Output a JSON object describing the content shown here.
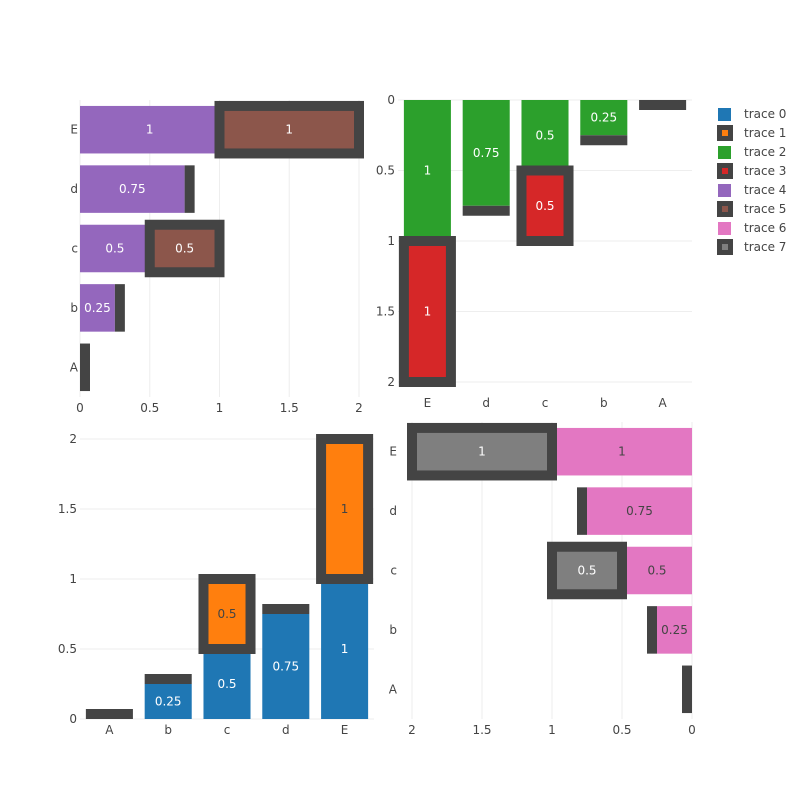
{
  "chart_data": {
    "type": "bar",
    "barmode": "stack",
    "grid": true,
    "legend_placement": "top-right",
    "colors": {
      "trace0": "#1f77b4",
      "trace1": "#ff7f0e",
      "trace2": "#2ca02c",
      "trace3": "#d62728",
      "trace4": "#9467bd",
      "trace5": "#8c564b",
      "trace6": "#e377c2",
      "trace7": "#7f7f7f",
      "outline": "#444444"
    },
    "legend": [
      "trace 0",
      "trace 1",
      "trace 2",
      "trace 3",
      "trace 4",
      "trace 5",
      "trace 6",
      "trace 7"
    ],
    "subplots": [
      {
        "id": "top-left",
        "orientation": "h",
        "categories": [
          "A",
          "b",
          "c",
          "d",
          "E"
        ],
        "value_ticks": [
          "0",
          "0.5",
          "1",
          "1.5",
          "2"
        ],
        "range": [
          0,
          2
        ],
        "reversed": false,
        "series": [
          {
            "name": "trace 4",
            "values": [
              0,
              0.25,
              0.5,
              0.75,
              1
            ],
            "labels": [
              "",
              "0.25",
              "0.5",
              "0.75",
              "1"
            ],
            "outlined": false
          },
          {
            "name": "trace 5",
            "values": [
              0,
              0,
              0.5,
              0,
              1
            ],
            "labels": [
              "",
              "",
              "0.5",
              "",
              "1"
            ],
            "outlined": true
          }
        ]
      },
      {
        "id": "top-right",
        "orientation": "v",
        "categories": [
          "E",
          "d",
          "c",
          "b",
          "A"
        ],
        "value_ticks": [
          "0",
          "0.5",
          "1",
          "1.5",
          "2"
        ],
        "range": [
          0,
          2
        ],
        "reversed": true,
        "series": [
          {
            "name": "trace 2",
            "values": [
              1,
              0.75,
              0.5,
              0.25,
              0
            ],
            "labels": [
              "1",
              "0.75",
              "0.5",
              "0.25",
              ""
            ],
            "outlined": false
          },
          {
            "name": "trace 3",
            "values": [
              1,
              0,
              0.5,
              0,
              0
            ],
            "labels": [
              "1",
              "",
              "0.5",
              "",
              ""
            ],
            "outlined": true
          }
        ]
      },
      {
        "id": "bottom-left",
        "orientation": "v",
        "categories": [
          "A",
          "b",
          "c",
          "d",
          "E"
        ],
        "value_ticks": [
          "0",
          "0.5",
          "1",
          "1.5",
          "2"
        ],
        "range": [
          0,
          2.05
        ],
        "reversed": false,
        "series": [
          {
            "name": "trace 0",
            "values": [
              0,
              0.25,
              0.5,
              0.75,
              1
            ],
            "labels": [
              "",
              "0.25",
              "0.5",
              "0.75",
              "1"
            ],
            "outlined": false
          },
          {
            "name": "trace 1",
            "values": [
              0,
              0,
              0.5,
              0,
              1
            ],
            "labels": [
              "",
              "",
              "0.5",
              "",
              "1"
            ],
            "outlined": true
          }
        ]
      },
      {
        "id": "bottom-right",
        "orientation": "h",
        "categories": [
          "A",
          "b",
          "c",
          "d",
          "E"
        ],
        "value_ticks": [
          "2",
          "1.5",
          "1",
          "0.5",
          "0"
        ],
        "range": [
          0,
          2
        ],
        "reversed": true,
        "series": [
          {
            "name": "trace 6",
            "values": [
              0,
              0.25,
              0.5,
              0.75,
              1
            ],
            "labels": [
              "",
              "0.25",
              "0.5",
              "0.75",
              "1"
            ],
            "outlined": false
          },
          {
            "name": "trace 7",
            "values": [
              0,
              0,
              0.5,
              0,
              1
            ],
            "labels": [
              "",
              "",
              "0.5",
              "",
              "1"
            ],
            "outlined": true
          }
        ]
      }
    ]
  }
}
